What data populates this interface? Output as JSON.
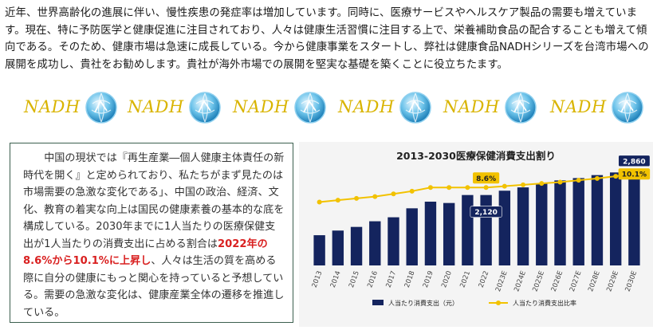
{
  "intro": {
    "text": "近年、世界高齢化の進展に伴い、慢性疾患の発症率は増加しています。同時に、医療サービスやヘルスケア製品の需要も増えています。現在、特に予防医学と健康促進に注目されており、人々は健康生活習慣に注目する上で、栄養補助食品の配合することも増えて傾向である。そのため、健康市場は急速に成長している。今から健康事業をスタートし、弊社は健康食品NADHシリーズを台湾市場への展開を成功し、貴社をお勧めします。貴社が海外市場での展開を堅実な基礎を築くことに役立ちたます。"
  },
  "logo": {
    "word": "NADH",
    "count": 6,
    "icon": "globe-icon"
  },
  "textbox": {
    "before": "中国の現状では『再生産業―個人健康主体責任の新時代を開く』と定められており、私たちがまず見たのは市場需要の急激な変化である」、中国の政治、経済、文化、教育の着実な向上は国民の健康素養の基本的な底を構成している。2030年までに1人当たりの医療保健支出が1人当たりの消費支出に占める割合は",
    "highlight": "2022年の8.6%から10.1%に上昇し",
    "after": "、人々は生活の質を高める際に自分の健康にもっと関心を持っていると予想している。需要の急激な変化は、健康産業全体の遷移を推進している。"
  },
  "chart_data": {
    "type": "bar",
    "title": "2013-2030医療保健消費支出割り",
    "categories": [
      "2013",
      "2014",
      "2015",
      "2016",
      "2017",
      "2018",
      "2019",
      "2020",
      "2021",
      "2022",
      "2023E",
      "2024E",
      "2025E",
      "2026E",
      "2027E",
      "2028E",
      "2029E",
      "2030E"
    ],
    "series": [
      {
        "name": "人当たり消費支出（元）",
        "kind": "bar",
        "color": "#14245e",
        "values": [
          910,
          1050,
          1160,
          1330,
          1450,
          1720,
          1920,
          1880,
          2120,
          2120,
          2250,
          2350,
          2470,
          2560,
          2630,
          2720,
          2800,
          2860
        ]
      },
      {
        "name": "人当たり消費支出比率",
        "kind": "line",
        "color": "#f2c200",
        "values": [
          7.0,
          7.2,
          7.4,
          7.6,
          7.9,
          8.2,
          8.6,
          8.6,
          8.6,
          8.6,
          8.75,
          8.9,
          9.05,
          9.2,
          9.4,
          9.6,
          9.85,
          10.1
        ]
      }
    ],
    "ylim_bar": [
      0,
      3000
    ],
    "ylim_line": [
      0,
      11
    ],
    "data_labels": [
      {
        "category": "2022",
        "series": "人当たり消費支出（元）",
        "text": "2,120"
      },
      {
        "category": "2030E",
        "series": "人当たり消費支出（元）",
        "text": "2,860"
      },
      {
        "category": "2022",
        "series": "人当たり消費支出比率",
        "text": "8.6%"
      },
      {
        "category": "2030E",
        "series": "人当たり消費支出比率",
        "text": "10.1%"
      }
    ],
    "legend": "bottom",
    "grid": false
  }
}
